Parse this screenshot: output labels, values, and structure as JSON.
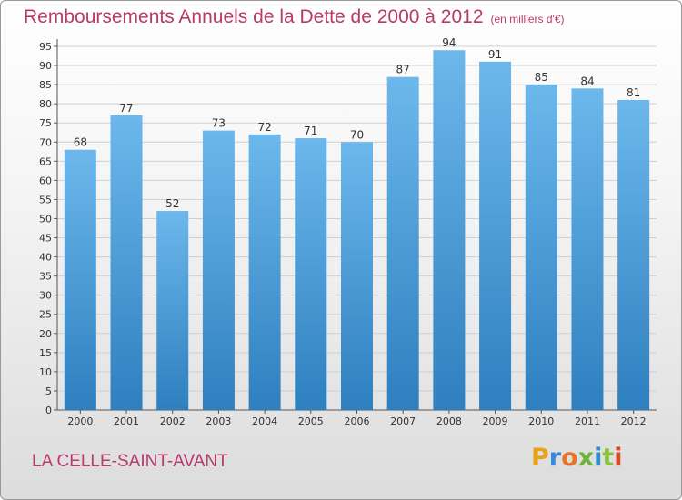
{
  "title": "Remboursements Annuels de la Dette de 2000 à 2012",
  "unit_note": "(en milliers d'€)",
  "location": "LA CELLE-SAINT-AVANT",
  "brand": {
    "letters": [
      "P",
      "r",
      "o",
      "x",
      "i",
      "t",
      "i"
    ],
    "colors": [
      "#e8a21c",
      "#3a8ad8",
      "#e8732a",
      "#6ab537",
      "#2b8fd0",
      "#8cc43a",
      "#d94a2a"
    ]
  },
  "colors": {
    "bar_top": "#6cb8ec",
    "bar_bottom": "#2e7fbf",
    "title": "#b83a6b",
    "grid": "#cfcfcf"
  },
  "chart_data": {
    "type": "bar",
    "categories": [
      "2000",
      "2001",
      "2002",
      "2003",
      "2004",
      "2005",
      "2006",
      "2007",
      "2008",
      "2009",
      "2010",
      "2011",
      "2012"
    ],
    "values": [
      68,
      77,
      52,
      73,
      72,
      71,
      70,
      87,
      94,
      91,
      85,
      84,
      81
    ],
    "yticks": [
      0,
      5,
      10,
      15,
      20,
      25,
      30,
      35,
      40,
      45,
      50,
      55,
      60,
      65,
      70,
      75,
      80,
      85,
      90,
      95
    ],
    "ylim": [
      0,
      95
    ],
    "grid": true,
    "data_labels": true
  }
}
